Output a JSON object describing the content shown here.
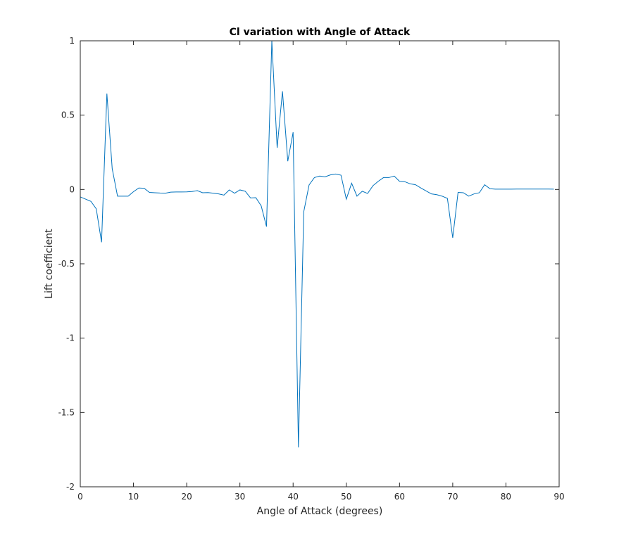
{
  "chart_data": {
    "type": "line",
    "title": "Cl variation with Angle of Attack",
    "xlabel": "Angle of Attack (degrees)",
    "ylabel": "Lift coefficient",
    "xlim": [
      0,
      90
    ],
    "ylim": [
      -2,
      1
    ],
    "xticks": [
      0,
      10,
      20,
      30,
      40,
      50,
      60,
      70,
      80,
      90
    ],
    "xtick_labels": [
      "0",
      "10",
      "20",
      "30",
      "40",
      "50",
      "60",
      "70",
      "80",
      "90"
    ],
    "yticks": [
      -2,
      -1.5,
      -1,
      -0.5,
      0,
      0.5,
      1
    ],
    "ytick_labels": [
      "-2",
      "-1.5",
      "-1",
      "-0.5",
      "0",
      "0.5",
      "1"
    ],
    "grid": false,
    "series": [
      {
        "color": "#0072BD",
        "x": [
          0,
          1,
          2,
          3,
          4,
          5,
          6,
          7,
          8,
          9,
          10,
          11,
          12,
          13,
          14,
          15,
          16,
          17,
          18,
          19,
          20,
          21,
          22,
          23,
          24,
          25,
          26,
          27,
          28,
          29,
          30,
          31,
          32,
          33,
          34,
          35,
          36,
          37,
          38,
          39,
          40,
          41,
          42,
          43,
          44,
          45,
          46,
          47,
          48,
          49,
          50,
          51,
          52,
          53,
          54,
          55,
          56,
          57,
          58,
          59,
          60,
          61,
          62,
          63,
          64,
          65,
          66,
          67,
          68,
          69,
          70,
          71,
          72,
          73,
          74,
          75,
          76,
          77,
          78,
          79,
          80,
          81,
          82,
          83,
          84,
          85,
          86,
          87,
          88,
          89
        ],
        "y": [
          -0.05,
          -0.065,
          -0.08,
          -0.13,
          -0.355,
          0.645,
          0.14,
          -0.045,
          -0.045,
          -0.045,
          -0.015,
          0.01,
          0.008,
          -0.02,
          -0.022,
          -0.024,
          -0.025,
          -0.018,
          -0.017,
          -0.017,
          -0.016,
          -0.014,
          -0.008,
          -0.022,
          -0.021,
          -0.025,
          -0.03,
          -0.038,
          -0.003,
          -0.025,
          -0.003,
          -0.012,
          -0.057,
          -0.055,
          -0.11,
          -0.25,
          1.0,
          0.28,
          0.66,
          0.19,
          0.385,
          -1.735,
          -0.15,
          0.03,
          0.08,
          0.09,
          0.085,
          0.098,
          0.104,
          0.096,
          -0.065,
          0.042,
          -0.045,
          -0.012,
          -0.027,
          0.025,
          0.055,
          0.08,
          0.08,
          0.09,
          0.055,
          0.052,
          0.038,
          0.032,
          0.01,
          -0.01,
          -0.03,
          -0.035,
          -0.045,
          -0.06,
          -0.325,
          -0.02,
          -0.022,
          -0.045,
          -0.03,
          -0.022,
          0.032,
          0.005,
          0.002,
          0.002,
          0.002,
          0.002,
          0.003,
          0.003,
          0.003,
          0.003,
          0.003,
          0.003,
          0.003,
          0.002
        ]
      }
    ]
  }
}
